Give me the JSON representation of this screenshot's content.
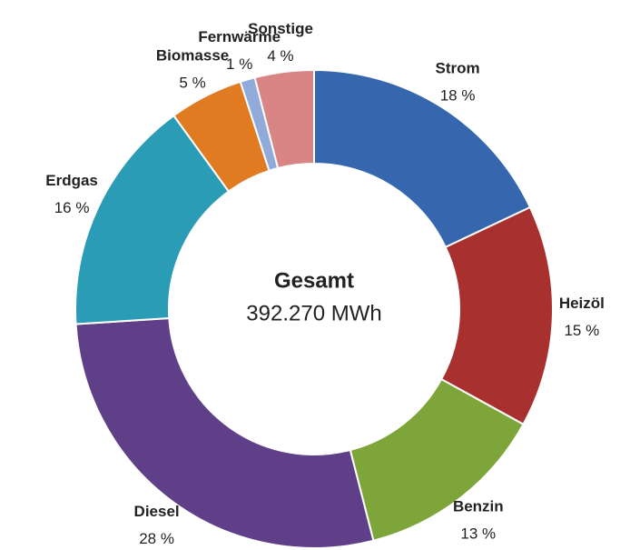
{
  "chart_data": {
    "type": "donut",
    "center_title": "Gesamt",
    "center_value": "392.270 MWh",
    "categories": [
      "Strom",
      "Heizöl",
      "Benzin",
      "Diesel",
      "Erdgas",
      "Biomasse",
      "Fernwärme",
      "Sonstige"
    ],
    "values": [
      18,
      15,
      13,
      28,
      16,
      5,
      1,
      4
    ],
    "value_labels": [
      "18 %",
      "15 %",
      "13 %",
      "28 %",
      "16 %",
      "5 %",
      "1 %",
      "4 %"
    ],
    "colors": [
      "#3566ae",
      "#a8302f",
      "#7ea53a",
      "#5f3f88",
      "#2b9cb6",
      "#e07b22",
      "#90aad9",
      "#d98585"
    ]
  }
}
